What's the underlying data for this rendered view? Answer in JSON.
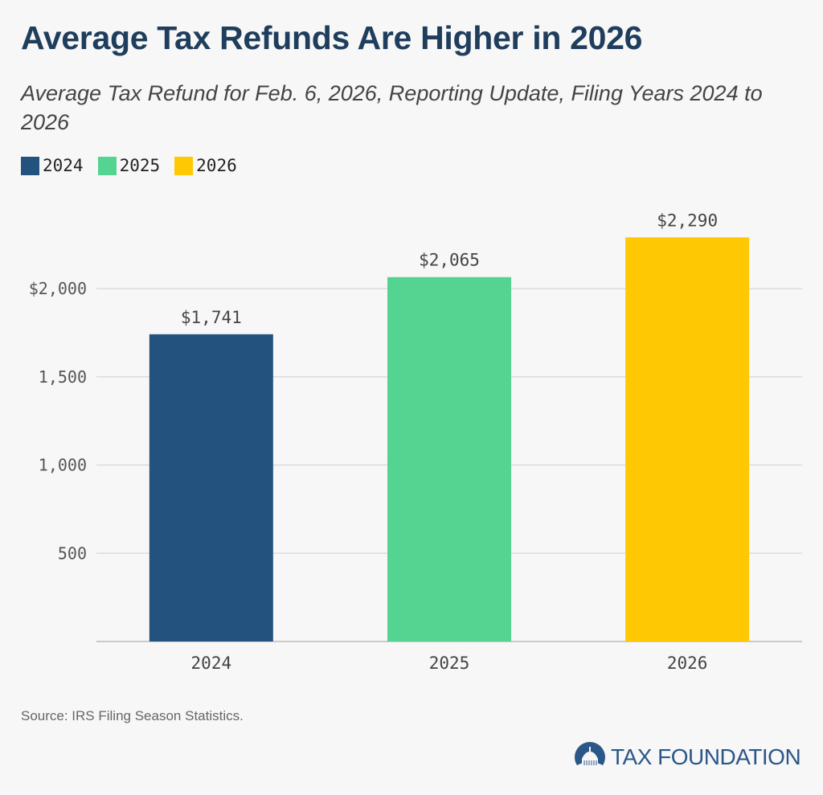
{
  "title": "Average Tax Refunds Are Higher in 2026",
  "subtitle": "Average Tax Refund for Feb. 6, 2026, Reporting Update, Filing Years 2024 to 2026",
  "source": "Source: IRS Filing Season Statistics.",
  "logo_text": "TAX FOUNDATION",
  "colors": {
    "2024": "#23527f",
    "2025": "#55d491",
    "2026": "#fec802"
  },
  "chart_data": {
    "type": "bar",
    "title": "Average Tax Refunds Are Higher in 2026",
    "xlabel": "",
    "ylabel": "",
    "categories": [
      "2024",
      "2025",
      "2026"
    ],
    "values": [
      1741,
      2065,
      2290
    ],
    "data_labels": [
      "$1,741",
      "$2,065",
      "$2,290"
    ],
    "colors": [
      "#23527f",
      "#55d491",
      "#fec802"
    ],
    "legend": [
      "2024",
      "2025",
      "2026"
    ],
    "legend_position": "top-left",
    "ylim": [
      0,
      2300
    ],
    "yticks": [
      500,
      1000,
      1500,
      2000
    ],
    "ytick_labels": [
      "500",
      "1,000",
      "1,500",
      "$2,000"
    ],
    "grid": true
  }
}
